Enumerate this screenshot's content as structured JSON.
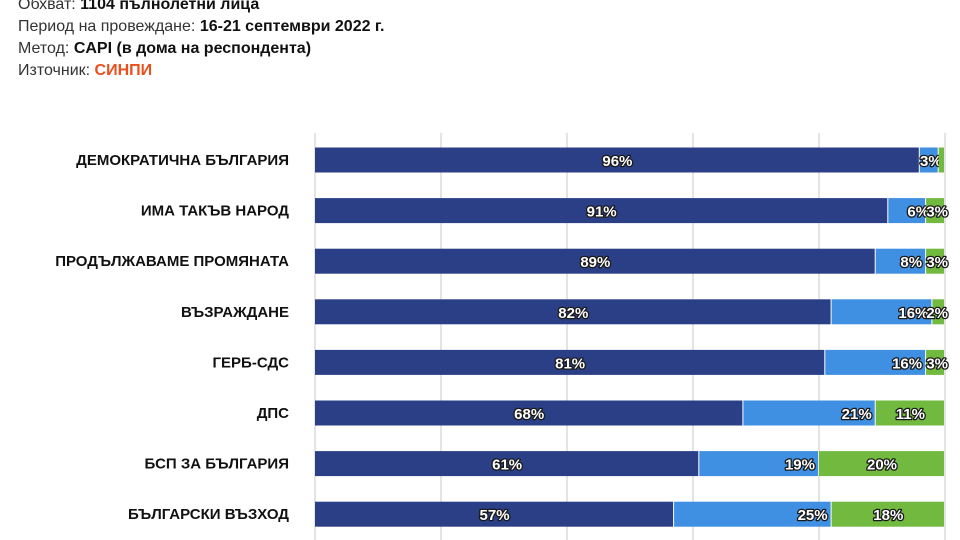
{
  "info": {
    "coverage_label": "Обхват:",
    "coverage_value": "1104 пълнолетни лица",
    "period_label": "Период на провеждане:",
    "period_value": "16-21 септември 2022 г.",
    "method_label": "Метод:",
    "method_value": "CAPI (в дома на респондента)",
    "source_label": "Източник:",
    "source_value": "СИНПИ"
  },
  "colors": {
    "series1": "#2b3f86",
    "series2": "#3f90e2",
    "series3": "#72b93f",
    "grid": "#c8c8c8",
    "source_accent": "#e8501e"
  },
  "chart_data": {
    "type": "bar",
    "orientation": "horizontal",
    "stacked": true,
    "categories": [
      "ДЕМОКРАТИЧНА БЪЛГАРИЯ",
      "ИМА ТАКЪВ НАРОД",
      "ПРОДЪЛЖАВАМЕ ПРОМЯНАТА",
      "ВЪЗРАЖДАНЕ",
      "ГЕРБ-СДС",
      "ДПС",
      "БСП ЗА БЪЛГАРИЯ",
      "БЪЛГАРСКИ ВЪЗХОД"
    ],
    "series": [
      {
        "values": [
          96,
          91,
          89,
          82,
          81,
          68,
          61,
          57
        ]
      },
      {
        "values": [
          3,
          6,
          8,
          16,
          16,
          21,
          19,
          25
        ]
      },
      {
        "values": [
          1,
          3,
          3,
          2,
          3,
          11,
          20,
          18
        ]
      }
    ],
    "data_labels": [
      [
        "96%",
        "91%",
        "89%",
        "82%",
        "81%",
        "68%",
        "61%",
        "57%"
      ],
      [
        "3%",
        "6%",
        "8%",
        "16%",
        "16%",
        "21%",
        "19%",
        "25%"
      ],
      [
        "",
        "3%",
        "3%",
        "2%",
        "3%",
        "11%",
        "20%",
        "18%"
      ]
    ],
    "xlim": [
      0,
      100
    ],
    "grid": true,
    "legend": "none"
  }
}
